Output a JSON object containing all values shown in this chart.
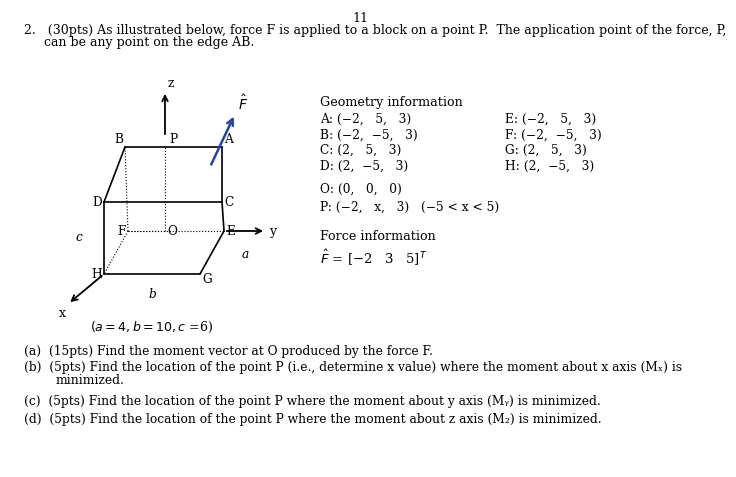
{
  "bg_color": "#ffffff",
  "page_num": "11",
  "header1": "2.   (30pts) As illustrated below, force F is applied to a block on a point P.  The application point of the force, P,",
  "header2": "     can be any point on the edge AB.",
  "geo_title": "Geometry information",
  "geo_left": [
    "A: (−2,   5,   3)",
    "B: (−2,  −5,   3)",
    "C: (2,   5,   3)",
    "D: (2,  −5,   3)"
  ],
  "geo_right": [
    "E: (−2,   5,   3)",
    "F: (−2,  −5,   3)",
    "G: (2,   5,   3)",
    "H: (2,  −5,   3)"
  ],
  "origin": "O: (0,   0,   0)",
  "point_p": "P: (−2,   x,   3)     (−5 < x < 5)",
  "force_title": "Force information",
  "force_eq": "F̂ = [−2   3   5]ᵀ",
  "param": "(a = 4, b = 10, c =6)",
  "qa": "(a)  (15pts) Find the moment vector at O produced by the force F.",
  "qb1": "(b)  (5pts) Find the location of the point P (i.e., determine x value) where the moment about x axis (Mₓ) is",
  "qb2": "        minimized.",
  "qc": "(c)  (5pts) Find the location of the point P where the moment about y axis (Mᵧ) is minimized.",
  "qd": "(d)  (5pts) Find the location of the point P where the moment about z axis (M₂) is minimized."
}
